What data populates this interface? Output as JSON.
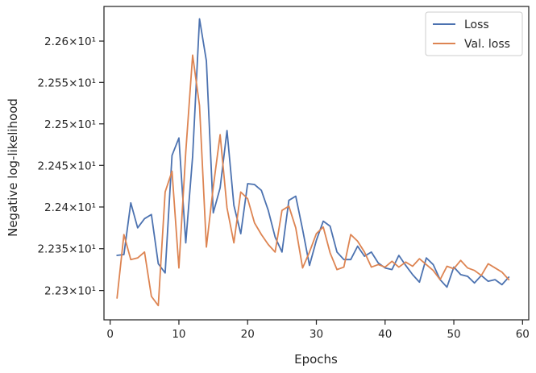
{
  "chart_data": {
    "type": "line",
    "xlabel": "Epochs",
    "ylabel": "Negative log-likelihood",
    "xlim": [
      -0.9,
      60.9
    ],
    "ylim": [
      22.265,
      22.642
    ],
    "y_scale": "log",
    "grid": false,
    "legend_position": "top-right",
    "x_ticks": [
      0,
      10,
      20,
      30,
      40,
      50,
      60
    ],
    "x_tick_labels": [
      "0",
      "10",
      "20",
      "30",
      "40",
      "50",
      "60"
    ],
    "y_ticks": [
      22.3,
      22.35,
      22.4,
      22.45,
      22.5,
      22.55,
      22.6
    ],
    "y_tick_labels": [
      "2.23×10¹",
      "2.235×10¹",
      "2.24×10¹",
      "2.245×10¹",
      "2.25×10¹",
      "2.255×10¹",
      "2.26×10¹"
    ],
    "x": [
      1,
      2,
      3,
      4,
      5,
      6,
      7,
      8,
      9,
      10,
      11,
      12,
      13,
      14,
      15,
      16,
      17,
      18,
      19,
      20,
      21,
      22,
      23,
      24,
      25,
      26,
      27,
      28,
      29,
      30,
      31,
      32,
      33,
      34,
      35,
      36,
      37,
      38,
      39,
      40,
      41,
      42,
      43,
      44,
      45,
      46,
      47,
      48,
      49,
      50,
      51,
      52,
      53,
      54,
      55,
      56,
      57,
      58
    ],
    "series": [
      {
        "name": "Loss",
        "color": "#4c72b0",
        "values": [
          22.342,
          22.343,
          22.405,
          22.375,
          22.386,
          22.391,
          22.332,
          22.321,
          22.462,
          22.483,
          22.357,
          22.461,
          22.627,
          22.576,
          22.393,
          22.423,
          22.492,
          22.402,
          22.368,
          22.428,
          22.427,
          22.42,
          22.396,
          22.364,
          22.346,
          22.408,
          22.413,
          22.373,
          22.33,
          22.36,
          22.383,
          22.377,
          22.346,
          22.337,
          22.337,
          22.353,
          22.341,
          22.346,
          22.333,
          22.327,
          22.325,
          22.342,
          22.33,
          22.319,
          22.31,
          22.339,
          22.331,
          22.313,
          22.304,
          22.328,
          22.319,
          22.317,
          22.309,
          22.318,
          22.311,
          22.313,
          22.307,
          22.316
        ]
      },
      {
        "name": "Val. loss",
        "color": "#dd8452",
        "values": [
          22.291,
          22.367,
          22.337,
          22.339,
          22.346,
          22.293,
          22.282,
          22.418,
          22.443,
          22.327,
          22.466,
          22.583,
          22.522,
          22.352,
          22.424,
          22.487,
          22.399,
          22.357,
          22.418,
          22.41,
          22.381,
          22.367,
          22.355,
          22.346,
          22.396,
          22.401,
          22.375,
          22.327,
          22.346,
          22.368,
          22.376,
          22.345,
          22.325,
          22.328,
          22.367,
          22.359,
          22.346,
          22.328,
          22.331,
          22.328,
          22.335,
          22.328,
          22.334,
          22.329,
          22.338,
          22.331,
          22.324,
          22.313,
          22.329,
          22.326,
          22.336,
          22.327,
          22.324,
          22.318,
          22.332,
          22.327,
          22.322,
          22.313
        ]
      }
    ]
  }
}
